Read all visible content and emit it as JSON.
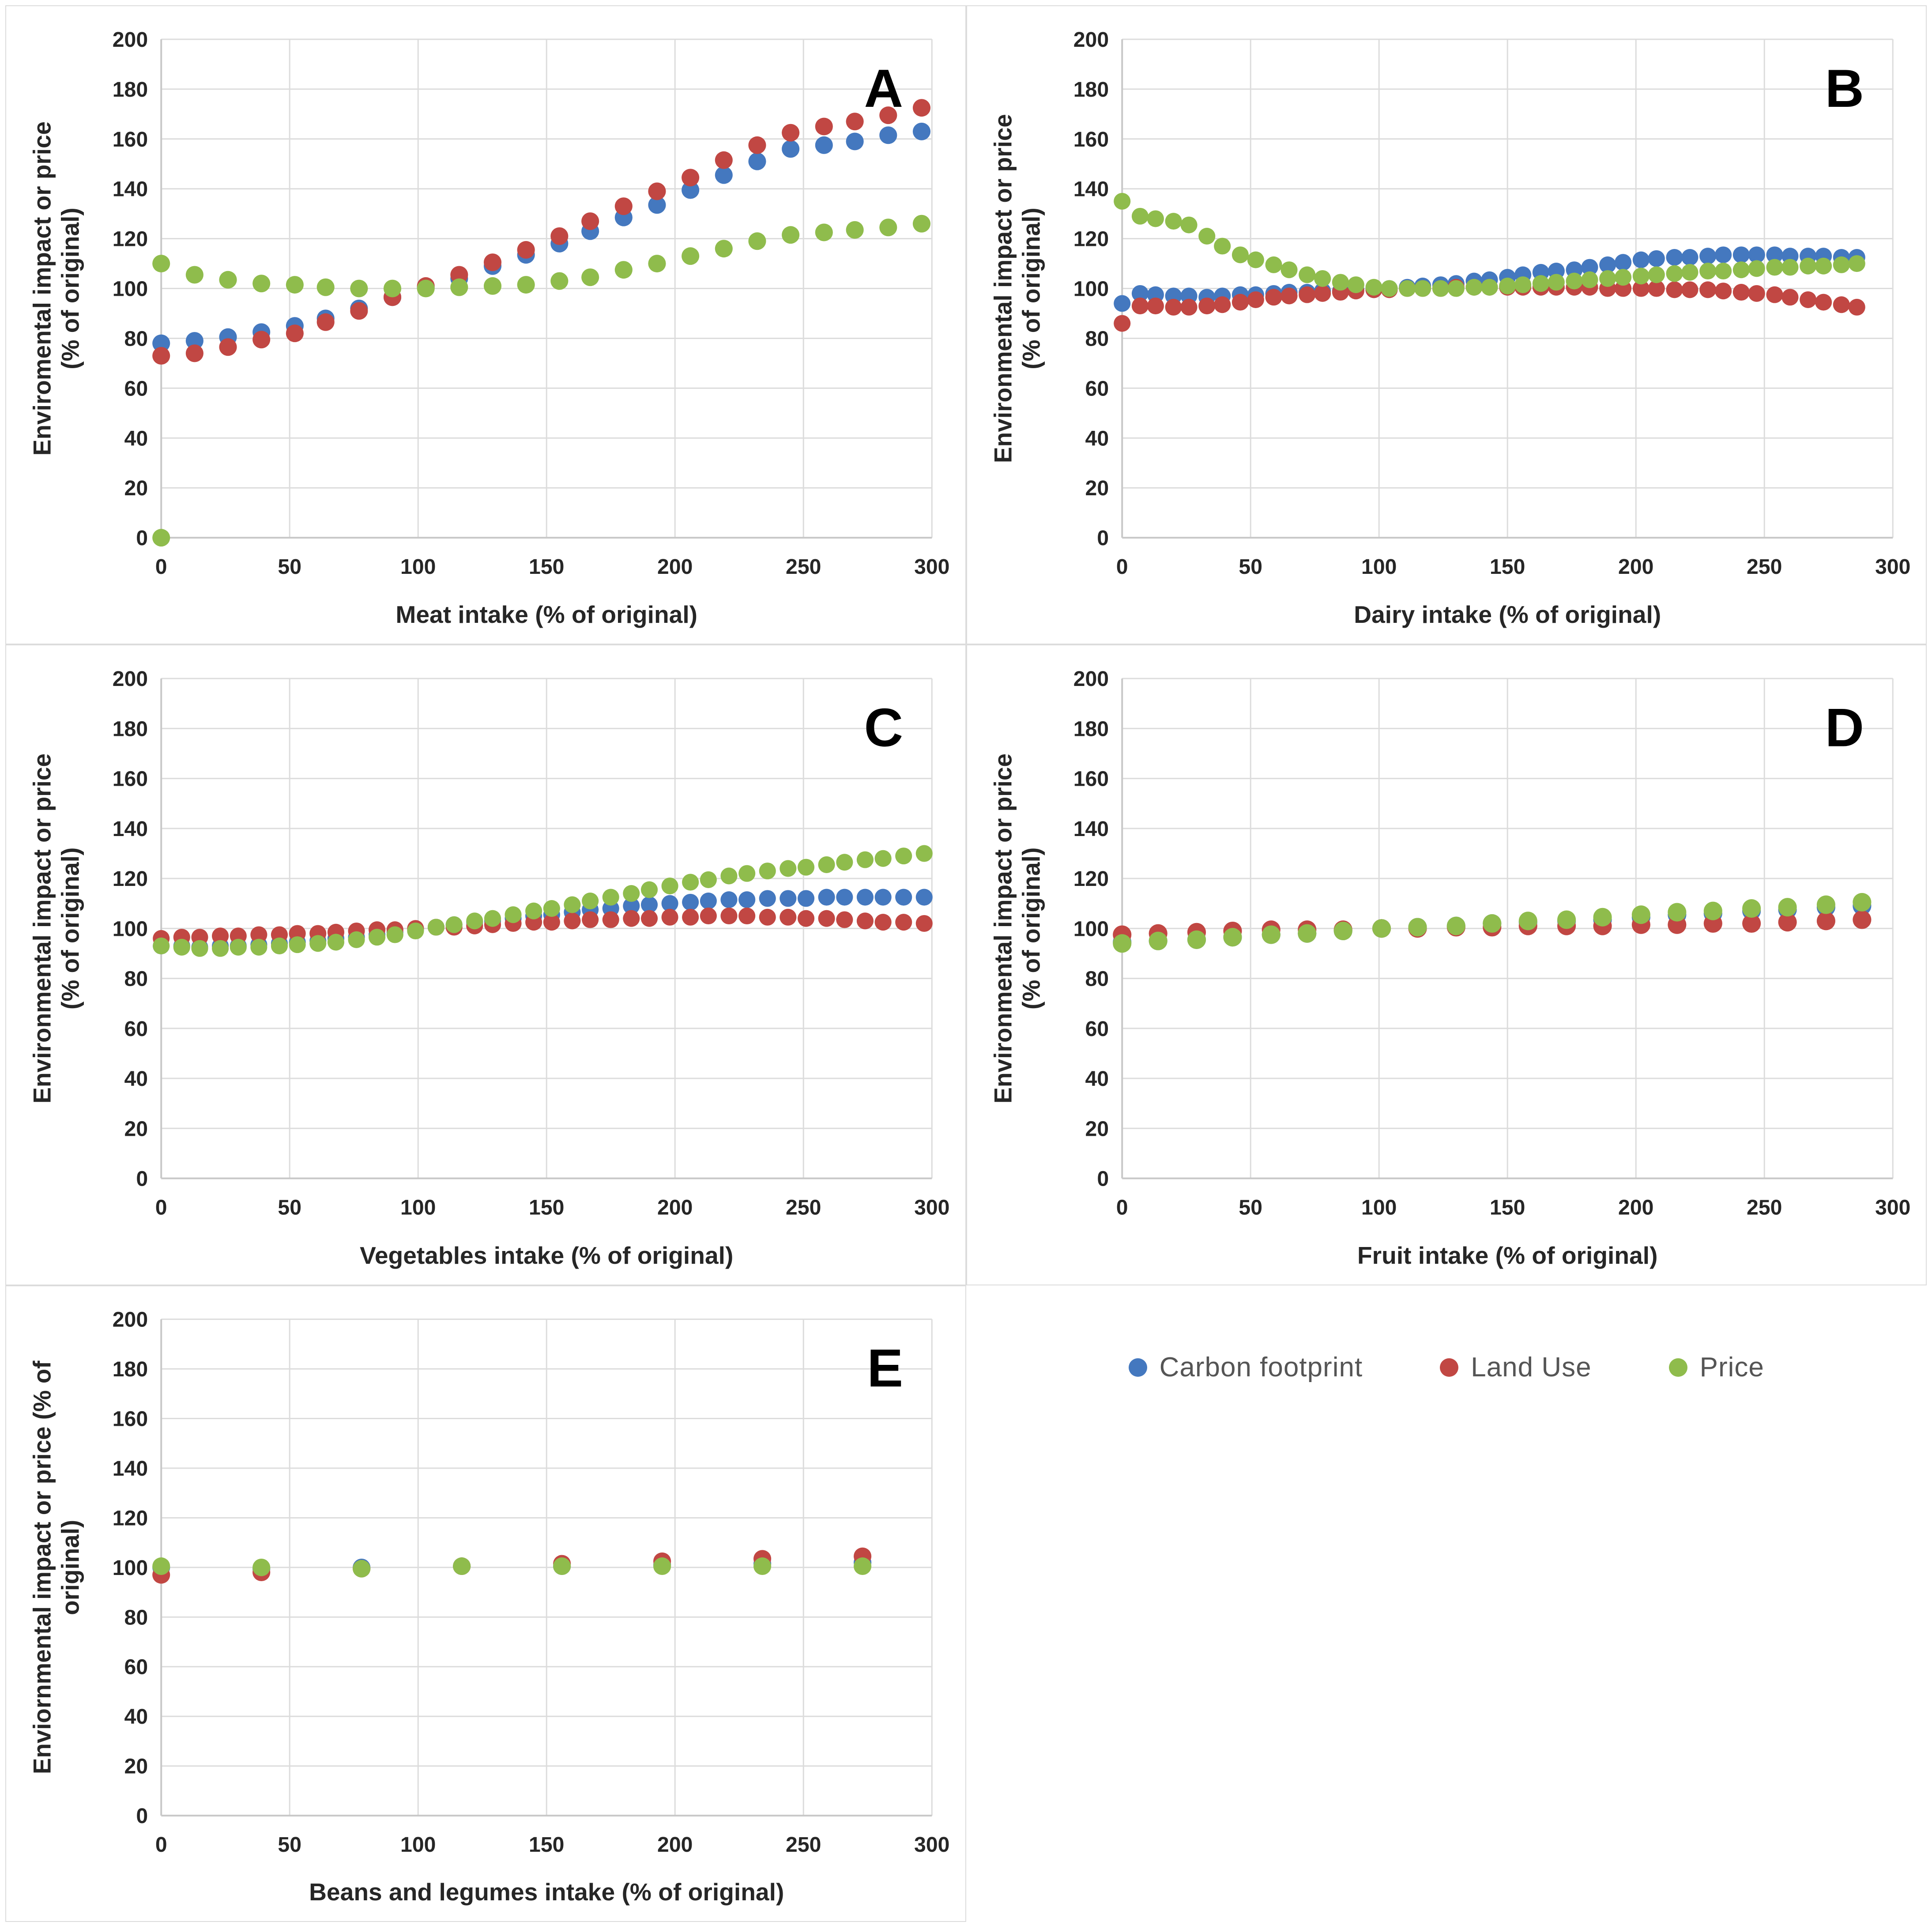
{
  "legend": {
    "items": [
      {
        "label": "Carbon footprint",
        "color": "#4478BF"
      },
      {
        "label": "Land Use",
        "color": "#C14743"
      },
      {
        "label": "Price",
        "color": "#8FBC4C"
      }
    ]
  },
  "style": {
    "gridline_color": "#dcdcdc",
    "axis_line_color": "#c8c8c8",
    "tick_color": "#262626",
    "title_color": "#262626",
    "panel_letter_color": "#000000"
  },
  "chart_data": [
    {
      "id": "A",
      "type": "scatter",
      "title": "A",
      "xlabel": "Meat intake (% of original)",
      "ylabel_lines": [
        "Enviromental impact or price",
        "(% of original)"
      ],
      "xlim": [
        0,
        300
      ],
      "ylim": [
        0,
        200
      ],
      "xticks": [
        0,
        50,
        100,
        150,
        200,
        250,
        300
      ],
      "yticks": [
        0,
        20,
        40,
        60,
        80,
        100,
        120,
        140,
        160,
        180,
        200
      ],
      "marker_r": 20,
      "x": [
        0,
        13,
        26,
        39,
        52,
        64,
        77,
        90,
        103,
        116,
        129,
        142,
        155,
        167,
        180,
        193,
        206,
        219,
        232,
        245,
        258,
        270,
        283,
        296
      ],
      "series": [
        {
          "name": "Carbon footprint",
          "color": "#4478BF",
          "values": [
            78,
            79,
            80.5,
            82.5,
            85,
            88,
            92,
            96.5,
            100.5,
            104,
            109,
            113.5,
            118,
            123,
            128.5,
            133.5,
            139.5,
            145.5,
            151,
            156,
            157.5,
            159,
            161.5,
            163
          ]
        },
        {
          "name": "Land Use",
          "color": "#C14743",
          "values": [
            73,
            74,
            76.5,
            79.5,
            82,
            86.5,
            91,
            96.5,
            101,
            105.5,
            110.5,
            115.5,
            121,
            127,
            133,
            139,
            144.5,
            151.5,
            157.5,
            162.5,
            165,
            167,
            169.5,
            172.5
          ]
        },
        {
          "name": "Price",
          "color": "#8FBC4C",
          "values": [
            110,
            105.5,
            103.5,
            102,
            101.5,
            100.5,
            100,
            100,
            100,
            100.5,
            101,
            101.5,
            103,
            104.5,
            107.5,
            110,
            113,
            116,
            119,
            121.5,
            122.5,
            123.5,
            124.5,
            126
          ]
        }
      ],
      "extra_points": [
        {
          "series": "Price",
          "x": 0,
          "y": 0
        }
      ]
    },
    {
      "id": "B",
      "type": "scatter",
      "title": "B",
      "xlabel": "Dairy intake (% of original)",
      "ylabel_lines": [
        "Environmental impact or price",
        "(% of original)"
      ],
      "xlim": [
        0,
        300
      ],
      "ylim": [
        0,
        200
      ],
      "xticks": [
        0,
        50,
        100,
        150,
        200,
        250,
        300
      ],
      "yticks": [
        0,
        20,
        40,
        60,
        80,
        100,
        120,
        140,
        160,
        180,
        200
      ],
      "marker_r": 19,
      "x": [
        0,
        7,
        13,
        20,
        26,
        33,
        39,
        46,
        52,
        59,
        65,
        72,
        78,
        85,
        91,
        98,
        104,
        111,
        117,
        124,
        130,
        137,
        143,
        150,
        156,
        163,
        169,
        176,
        182,
        189,
        195,
        202,
        208,
        215,
        221,
        228,
        234,
        241,
        247,
        254,
        260,
        267,
        273,
        280,
        286
      ],
      "series": [
        {
          "name": "Carbon footprint",
          "color": "#4478BF",
          "values": [
            94,
            98,
            97.5,
            97,
            97,
            96.5,
            97,
            97.5,
            97.5,
            98,
            98.5,
            98.5,
            99,
            99,
            99.5,
            99.5,
            100,
            100.5,
            101,
            101.5,
            102,
            103,
            103.5,
            104.5,
            105.5,
            106.5,
            107,
            107.5,
            108.5,
            109.5,
            110.5,
            111.5,
            112,
            112.5,
            112.5,
            113,
            113.5,
            113.5,
            113.5,
            113.5,
            113,
            113,
            113,
            112.5,
            112.5
          ]
        },
        {
          "name": "Land Use",
          "color": "#C14743",
          "values": [
            86,
            93,
            93,
            92.5,
            92.5,
            93,
            93.5,
            94.5,
            95.5,
            96.5,
            97,
            97.5,
            98,
            98.5,
            99,
            99.5,
            99.5,
            100,
            100,
            100,
            100.5,
            100.5,
            100.5,
            100.5,
            100.5,
            100.5,
            100.5,
            100.5,
            100.5,
            100,
            100,
            100,
            100,
            99.5,
            99.5,
            99.5,
            99,
            98.5,
            98,
            97.5,
            96.5,
            95.5,
            94.5,
            93.5,
            92.5
          ]
        },
        {
          "name": "Price",
          "color": "#8FBC4C",
          "values": [
            135,
            129,
            128,
            127,
            125.5,
            121,
            117,
            113.5,
            111.5,
            109.5,
            107.5,
            105.5,
            104,
            102.5,
            101.5,
            100.5,
            100,
            100,
            100,
            100,
            100,
            100.5,
            100.5,
            101,
            101.5,
            102,
            102.5,
            103,
            103.5,
            104,
            104.5,
            105,
            105.5,
            106,
            106.5,
            107,
            107,
            107.5,
            108,
            108.5,
            108.5,
            109,
            109,
            109.5,
            110
          ]
        }
      ],
      "extra_points": []
    },
    {
      "id": "C",
      "type": "scatter",
      "title": "C",
      "xlabel": "Vegetables intake (% of original)",
      "ylabel_lines": [
        "Environmental impact or price",
        "(% of original)"
      ],
      "xlim": [
        0,
        300
      ],
      "ylim": [
        0,
        200
      ],
      "xticks": [
        0,
        50,
        100,
        150,
        200,
        250,
        300
      ],
      "yticks": [
        0,
        20,
        40,
        60,
        80,
        100,
        120,
        140,
        160,
        180,
        200
      ],
      "marker_r": 19,
      "x": [
        0,
        8,
        15,
        23,
        30,
        38,
        46,
        53,
        61,
        68,
        76,
        84,
        91,
        99,
        107,
        114,
        122,
        129,
        137,
        145,
        152,
        160,
        167,
        175,
        183,
        190,
        198,
        206,
        213,
        221,
        228,
        236,
        244,
        251,
        259,
        266,
        274,
        281,
        289,
        297
      ],
      "series": [
        {
          "name": "Carbon footprint",
          "color": "#4478BF",
          "values": [
            93,
            93,
            92.5,
            93,
            93,
            93.5,
            94,
            94.5,
            95,
            96,
            96.5,
            97.5,
            98.5,
            99.5,
            100.5,
            101.5,
            102.5,
            103,
            104,
            105,
            105.5,
            106.5,
            107.5,
            108,
            109,
            109.5,
            110,
            110.5,
            111,
            111.5,
            111.5,
            112,
            112,
            112,
            112.5,
            112.5,
            112.5,
            112.5,
            112.5,
            112.5
          ]
        },
        {
          "name": "Land Use",
          "color": "#C14743",
          "values": [
            96,
            96.5,
            96.5,
            97,
            97,
            97.5,
            97.5,
            98,
            98,
            98.5,
            99,
            99.5,
            99.5,
            100,
            100.5,
            100.5,
            101,
            101.5,
            102,
            102.5,
            102.5,
            103,
            103.5,
            103.5,
            104,
            104,
            104.5,
            104.5,
            105,
            105,
            105,
            104.5,
            104.5,
            104,
            104,
            103.5,
            103,
            102.5,
            102.5,
            102
          ]
        },
        {
          "name": "Price",
          "color": "#8FBC4C",
          "values": [
            93,
            92.5,
            92,
            92,
            92.5,
            92.5,
            93,
            93.5,
            94,
            94.5,
            95.5,
            96.5,
            97.5,
            99,
            100.5,
            101.5,
            103,
            104,
            105.5,
            107,
            108,
            109.5,
            111,
            112.5,
            114,
            115.5,
            117,
            118.5,
            119.5,
            121,
            122,
            123,
            124,
            124.5,
            125.5,
            126.5,
            127.5,
            128,
            129,
            130
          ]
        }
      ],
      "extra_points": []
    },
    {
      "id": "D",
      "type": "scatter",
      "title": "D",
      "xlabel": "Fruit intake (% of original)",
      "ylabel_lines": [
        "Environmental impact or price",
        "(% of original)"
      ],
      "xlim": [
        0,
        300
      ],
      "ylim": [
        0,
        200
      ],
      "xticks": [
        0,
        50,
        100,
        150,
        200,
        250,
        300
      ],
      "yticks": [
        0,
        20,
        40,
        60,
        80,
        100,
        120,
        140,
        160,
        180,
        200
      ],
      "marker_r": 21,
      "x": [
        0,
        14,
        29,
        43,
        58,
        72,
        86,
        101,
        115,
        130,
        144,
        158,
        173,
        187,
        202,
        216,
        230,
        245,
        259,
        274,
        288
      ],
      "series": [
        {
          "name": "Carbon footprint",
          "color": "#4478BF",
          "values": [
            94.5,
            95,
            95.5,
            96.5,
            97.5,
            98,
            99,
            100,
            100.5,
            101,
            102,
            102.5,
            103,
            103.5,
            104.5,
            105.5,
            106,
            107,
            107.5,
            108.5,
            109
          ]
        },
        {
          "name": "Land Use",
          "color": "#C14743",
          "values": [
            97.5,
            98,
            98.5,
            99,
            99.5,
            99.5,
            99.5,
            100,
            100,
            100.5,
            100.5,
            101,
            101,
            101,
            101.5,
            101.5,
            102,
            102,
            102.5,
            103,
            103.5
          ]
        },
        {
          "name": "Price",
          "color": "#8FBC4C",
          "values": [
            94,
            95,
            95.5,
            96.5,
            97.5,
            98,
            99,
            100,
            100.5,
            101,
            102,
            103,
            103.5,
            104.5,
            105.5,
            106.5,
            107,
            108,
            108.5,
            109.5,
            110.5
          ]
        }
      ],
      "extra_points": []
    },
    {
      "id": "E",
      "type": "scatter",
      "title": "E",
      "xlabel": "Beans and legumes intake (% of original)",
      "ylabel_lines": [
        "Enviornmental impact or price (% of",
        "original)"
      ],
      "xlim": [
        0,
        300
      ],
      "ylim": [
        0,
        200
      ],
      "xticks": [
        0,
        50,
        100,
        150,
        200,
        250,
        300
      ],
      "yticks": [
        0,
        20,
        40,
        60,
        80,
        100,
        120,
        140,
        160,
        180,
        200
      ],
      "marker_r": 20,
      "x": [
        0,
        39,
        78,
        117,
        156,
        195,
        234,
        273
      ],
      "series": [
        {
          "name": "Carbon footprint",
          "color": "#4478BF",
          "values": [
            100,
            99.5,
            100,
            100.5,
            100.5,
            101,
            101.5,
            102
          ]
        },
        {
          "name": "Land Use",
          "color": "#C14743",
          "values": [
            97,
            98,
            99.5,
            100.5,
            101.5,
            102.5,
            103.5,
            104.5
          ]
        },
        {
          "name": "Price",
          "color": "#8FBC4C",
          "values": [
            100.5,
            100,
            99.5,
            100.5,
            100.5,
            100.5,
            100.5,
            100.5
          ]
        }
      ],
      "extra_points": []
    }
  ]
}
